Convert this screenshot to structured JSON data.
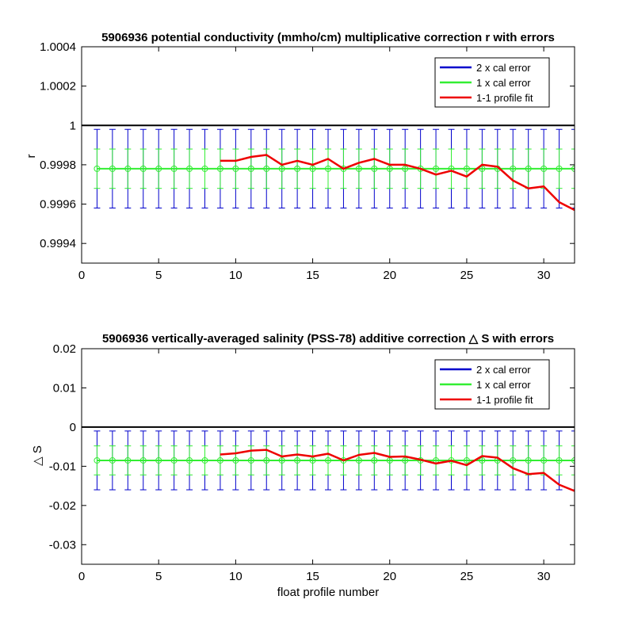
{
  "chart_data": [
    {
      "type": "line",
      "title": "5906936 potential conductivity (mmho/cm) multiplicative correction r with errors",
      "xlabel": "",
      "ylabel": "r",
      "xlim": [
        0,
        32
      ],
      "ylim": [
        0.9993,
        1.0004
      ],
      "xticks": [
        0,
        5,
        10,
        15,
        20,
        25,
        30
      ],
      "yticks": [
        0.9994,
        0.9996,
        0.9998,
        1,
        1.0002,
        1.0004
      ],
      "ytick_labels": [
        "0.9994",
        "0.9996",
        "0.9998",
        "1",
        "1.0002",
        "1.0004"
      ],
      "reference_line": 1,
      "grid": false,
      "legend_position": "top-right",
      "errorbars": {
        "x": [
          1,
          2,
          3,
          4,
          5,
          6,
          7,
          8,
          9,
          10,
          11,
          12,
          13,
          14,
          15,
          16,
          17,
          18,
          19,
          20,
          21,
          22,
          23,
          24,
          25,
          26,
          27,
          28,
          29,
          30,
          31,
          32
        ],
        "center": 0.99978,
        "two_cal_error": 0.0002,
        "one_cal_error": 0.0001
      },
      "series": [
        {
          "name": "2 x cal error",
          "color": "#0000cc"
        },
        {
          "name": "1 x cal error",
          "color": "#33ee33"
        },
        {
          "name": "1-1 profile fit",
          "color": "#ee0000",
          "x": [
            9,
            10,
            11,
            12,
            13,
            14,
            15,
            16,
            17,
            18,
            19,
            20,
            21,
            22,
            23,
            24,
            25,
            26,
            27,
            28,
            29,
            30,
            31,
            32
          ],
          "values": [
            0.99982,
            0.99982,
            0.99984,
            0.99985,
            0.9998,
            0.99982,
            0.9998,
            0.99983,
            0.99978,
            0.99981,
            0.99983,
            0.9998,
            0.9998,
            0.99978,
            0.99975,
            0.99977,
            0.99974,
            0.9998,
            0.99979,
            0.99972,
            0.99968,
            0.99969,
            0.99961,
            0.99957
          ]
        }
      ]
    },
    {
      "type": "line",
      "title": "5906936 vertically-averaged salinity (PSS-78) additive correction △ S with errors",
      "xlabel": "float profile number",
      "ylabel": "△ S",
      "xlim": [
        0,
        32
      ],
      "ylim": [
        -0.035,
        0.02
      ],
      "xticks": [
        0,
        5,
        10,
        15,
        20,
        25,
        30
      ],
      "yticks": [
        -0.03,
        -0.02,
        -0.01,
        0,
        0.01,
        0.02
      ],
      "ytick_labels": [
        "-0.03",
        "-0.02",
        "-0.01",
        "0",
        "0.01",
        "0.02"
      ],
      "reference_line": 0,
      "grid": false,
      "legend_position": "top-right",
      "errorbars": {
        "x": [
          1,
          2,
          3,
          4,
          5,
          6,
          7,
          8,
          9,
          10,
          11,
          12,
          13,
          14,
          15,
          16,
          17,
          18,
          19,
          20,
          21,
          22,
          23,
          24,
          25,
          26,
          27,
          28,
          29,
          30,
          31,
          32
        ],
        "center": -0.0085,
        "two_cal_error": 0.0075,
        "one_cal_error": 0.0037
      },
      "series": [
        {
          "name": "2 x cal error",
          "color": "#0000cc"
        },
        {
          "name": "1 x cal error",
          "color": "#33ee33"
        },
        {
          "name": "1-1 profile fit",
          "color": "#ee0000",
          "x": [
            9,
            10,
            11,
            12,
            13,
            14,
            15,
            16,
            17,
            18,
            19,
            20,
            21,
            22,
            23,
            24,
            25,
            26,
            27,
            28,
            29,
            30,
            31,
            32
          ],
          "values": [
            -0.007,
            -0.0067,
            -0.006,
            -0.0058,
            -0.0075,
            -0.007,
            -0.0075,
            -0.0068,
            -0.0085,
            -0.0071,
            -0.0066,
            -0.0076,
            -0.0075,
            -0.0083,
            -0.0093,
            -0.0086,
            -0.0097,
            -0.0074,
            -0.0078,
            -0.0105,
            -0.012,
            -0.0117,
            -0.0147,
            -0.0163
          ]
        }
      ]
    }
  ]
}
